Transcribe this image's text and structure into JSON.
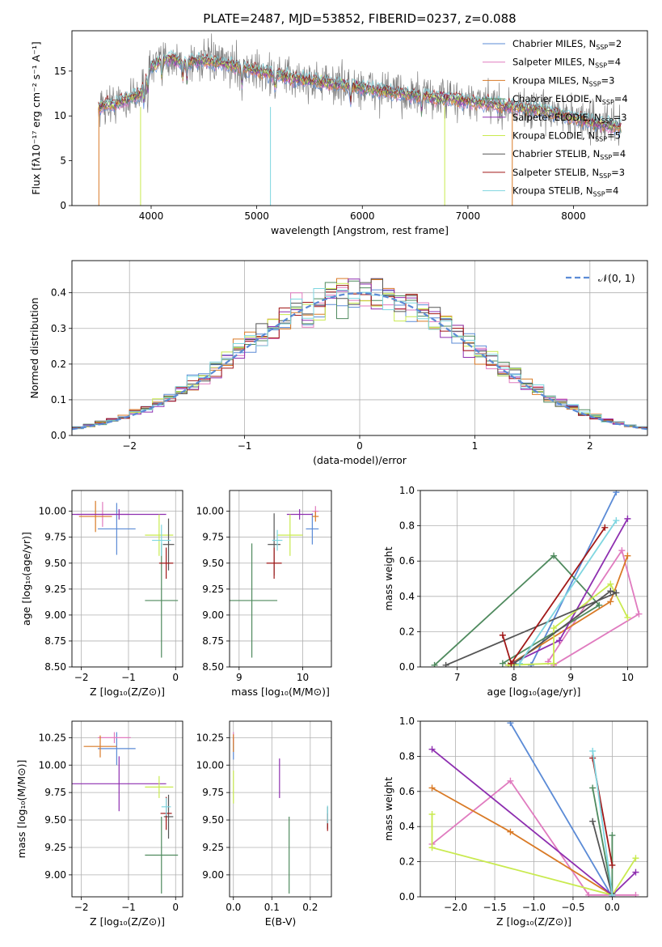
{
  "title": "PLATE=2487, MJD=53852, FIBERID=0237, z=0.088",
  "colors": {
    "chabrier_miles": "#5b8bd6",
    "salpeter_miles": "#e07bbf",
    "kroupa_miles": "#d97a26",
    "chabrier_elodie": "#4f8a5e",
    "salpeter_elodie": "#8e2fb0",
    "kroupa_elodie": "#c9ea4f",
    "chabrier_stelib": "#555555",
    "salpeter_stelib": "#a11818",
    "kroupa_stelib": "#7fd6e0"
  },
  "legend": [
    {
      "base": "Chabrier MILES, N",
      "sub": "SSP",
      "eq": "=2",
      "color_key": "chabrier_miles"
    },
    {
      "base": "Salpeter MILES, N",
      "sub": "SSP",
      "eq": "=4",
      "color_key": "salpeter_miles"
    },
    {
      "base": "Kroupa MILES, N",
      "sub": "SSP",
      "eq": "=3",
      "color_key": "kroupa_miles"
    },
    {
      "base": "Chabrier ELODIE, N",
      "sub": "SSP",
      "eq": "=4",
      "color_key": "chabrier_elodie"
    },
    {
      "base": "Salpeter ELODIE, N",
      "sub": "SSP",
      "eq": "=3",
      "color_key": "salpeter_elodie"
    },
    {
      "base": "Kroupa ELODIE, N",
      "sub": "SSP",
      "eq": "=5",
      "color_key": "kroupa_elodie"
    },
    {
      "base": "Chabrier STELIB, N",
      "sub": "SSP",
      "eq": "=4",
      "color_key": "chabrier_stelib"
    },
    {
      "base": "Salpeter STELIB, N",
      "sub": "SSP",
      "eq": "=3",
      "color_key": "salpeter_stelib"
    },
    {
      "base": "Kroupa STELIB, N",
      "sub": "SSP",
      "eq": "=4",
      "color_key": "kroupa_stelib"
    }
  ],
  "chart_data": [
    {
      "id": "spectrum",
      "type": "line",
      "xlabel": "wavelength [Angstrom, rest frame]",
      "ylabel": "Flux [fλ10⁻¹⁷ erg cm⁻² s⁻¹ A⁻¹]",
      "xlim": [
        3250,
        8700
      ],
      "ylim": [
        0,
        19.5
      ],
      "xticks": [
        4000,
        5000,
        6000,
        7000,
        8000
      ],
      "yticks": [
        0,
        5,
        10,
        15
      ],
      "grid": false,
      "legend_position": "upper-right",
      "continuum_x": [
        3500,
        3700,
        3900,
        4000,
        4150,
        4300,
        4500,
        4700,
        5000,
        5300,
        5600,
        5900,
        6200,
        6500,
        6800,
        7100,
        7400,
        7700,
        8000,
        8200,
        8450
      ],
      "continuum_y": [
        11.0,
        11.5,
        12.5,
        15.5,
        16.5,
        16.0,
        16.2,
        15.8,
        15.0,
        14.3,
        13.8,
        13.3,
        12.8,
        12.3,
        11.9,
        11.5,
        11.0,
        10.6,
        9.8,
        9.2,
        8.7
      ]
    },
    {
      "id": "residuals",
      "type": "histogram",
      "xlabel": "(data-model)/error",
      "ylabel": "Normed distribution",
      "xlim": [
        -2.5,
        2.5
      ],
      "ylim": [
        0,
        0.49
      ],
      "xticks": [
        -2,
        -1,
        0,
        1,
        2
      ],
      "yticks": [
        0.0,
        0.1,
        0.2,
        0.3,
        0.4
      ],
      "grid": true,
      "legend_position": "upper-right",
      "reference_label": "𝒩(0, 1)",
      "reference_color": "#5b8bd6",
      "bin_width": 0.1
    },
    {
      "id": "age_vs_z",
      "type": "errorbar",
      "xlabel": "Z [log₁₀(Z/Z⊙)]",
      "ylabel": "age  [log₁₀(age/yr)]",
      "xlim": [
        -2.2,
        0.15
      ],
      "ylim": [
        8.5,
        10.2
      ],
      "xticks": [
        -2,
        -1,
        0
      ],
      "yticks": [
        8.5,
        8.75,
        9.0,
        9.25,
        9.5,
        9.75,
        10.0
      ],
      "points": [
        {
          "color_key": "chabrier_miles",
          "x": -1.25,
          "xerr": 0.4,
          "y": 9.83,
          "yerr": 0.25
        },
        {
          "color_key": "salpeter_miles",
          "x": -1.55,
          "xerr": 0.55,
          "y": 9.97,
          "yerr": 0.12
        },
        {
          "color_key": "kroupa_miles",
          "x": -1.7,
          "xerr": 0.35,
          "y": 9.95,
          "yerr": 0.15
        },
        {
          "color_key": "chabrier_elodie",
          "x": -0.3,
          "xerr": 0.35,
          "y": 9.14,
          "yerr": 0.55
        },
        {
          "color_key": "salpeter_elodie",
          "x": -1.2,
          "xerr": 1.0,
          "y": 9.97,
          "yerr": 0.05
        },
        {
          "color_key": "kroupa_elodie",
          "x": -0.35,
          "xerr": 0.3,
          "y": 9.77,
          "yerr": 0.2
        },
        {
          "color_key": "chabrier_stelib",
          "x": -0.15,
          "xerr": 0.12,
          "y": 9.68,
          "yerr": 0.25
        },
        {
          "color_key": "salpeter_stelib",
          "x": -0.2,
          "xerr": 0.15,
          "y": 9.5,
          "yerr": 0.15
        },
        {
          "color_key": "kroupa_stelib",
          "x": -0.3,
          "xerr": 0.2,
          "y": 9.72,
          "yerr": 0.15
        }
      ]
    },
    {
      "id": "age_vs_mass",
      "type": "errorbar",
      "xlabel": "mass [log₁₀(M/M⊙)]",
      "ylabel": "",
      "xlim": [
        8.85,
        10.45
      ],
      "ylim": [
        8.5,
        10.2
      ],
      "xticks": [
        9,
        10
      ],
      "yticks": [
        8.5,
        8.75,
        9.0,
        9.25,
        9.5,
        9.75,
        10.0
      ],
      "points": [
        {
          "color_key": "chabrier_miles",
          "x": 10.15,
          "xerr": 0.1,
          "y": 9.83,
          "yerr": 0.15
        },
        {
          "color_key": "salpeter_miles",
          "x": 10.2,
          "xerr": 0.05,
          "y": 10.0,
          "yerr": 0.05
        },
        {
          "color_key": "kroupa_miles",
          "x": 10.2,
          "xerr": 0.05,
          "y": 9.95,
          "yerr": 0.05
        },
        {
          "color_key": "chabrier_elodie",
          "x": 9.2,
          "xerr": 0.4,
          "y": 9.14,
          "yerr": 0.55
        },
        {
          "color_key": "salpeter_elodie",
          "x": 9.95,
          "xerr": 0.2,
          "y": 9.97,
          "yerr": 0.05
        },
        {
          "color_key": "kroupa_elodie",
          "x": 9.8,
          "xerr": 0.2,
          "y": 9.77,
          "yerr": 0.2
        },
        {
          "color_key": "chabrier_stelib",
          "x": 9.55,
          "xerr": 0.1,
          "y": 9.68,
          "yerr": 0.3
        },
        {
          "color_key": "salpeter_stelib",
          "x": 9.55,
          "xerr": 0.12,
          "y": 9.5,
          "yerr": 0.15
        },
        {
          "color_key": "kroupa_stelib",
          "x": 9.6,
          "xerr": 0.08,
          "y": 9.72,
          "yerr": 0.1
        }
      ]
    },
    {
      "id": "weight_vs_age",
      "type": "line",
      "xlabel": "age  [log₁₀(age/yr)]",
      "ylabel": "mass weight",
      "xlim": [
        6.35,
        10.35
      ],
      "ylim": [
        0,
        1.0
      ],
      "xticks": [
        7,
        8,
        9,
        10
      ],
      "yticks": [
        0.0,
        0.2,
        0.4,
        0.6,
        0.8,
        1.0
      ],
      "grid": true,
      "series": [
        {
          "color_key": "chabrier_miles",
          "x": [
            8.3,
            9.8
          ],
          "y": [
            0.01,
            0.99
          ]
        },
        {
          "color_key": "salpeter_miles",
          "x": [
            8.6,
            9.9,
            10.2,
            8.7
          ],
          "y": [
            0.03,
            0.66,
            0.3,
            0.01
          ]
        },
        {
          "color_key": "kroupa_miles",
          "x": [
            10.0,
            9.7,
            7.9
          ],
          "y": [
            0.63,
            0.37,
            0.01
          ]
        },
        {
          "color_key": "chabrier_elodie",
          "x": [
            6.6,
            8.7,
            9.5,
            7.8
          ],
          "y": [
            0.01,
            0.63,
            0.35,
            0.02
          ]
        },
        {
          "color_key": "salpeter_elodie",
          "x": [
            10.0,
            8.8,
            7.9
          ],
          "y": [
            0.84,
            0.15,
            0.01
          ]
        },
        {
          "color_key": "kroupa_elodie",
          "x": [
            10.0,
            9.7,
            8.7,
            8.7,
            7.9
          ],
          "y": [
            0.28,
            0.47,
            0.22,
            0.02,
            0.01
          ]
        },
        {
          "color_key": "chabrier_stelib",
          "x": [
            6.8,
            9.8,
            9.7,
            8.0
          ],
          "y": [
            0.01,
            0.42,
            0.43,
            0.02
          ]
        },
        {
          "color_key": "salpeter_stelib",
          "x": [
            7.8,
            7.95,
            9.6
          ],
          "y": [
            0.18,
            0.02,
            0.79
          ]
        },
        {
          "color_key": "kroupa_stelib",
          "x": [
            9.8,
            8.1
          ],
          "y": [
            0.83,
            0.02
          ]
        }
      ]
    },
    {
      "id": "mass_vs_z",
      "type": "errorbar",
      "xlabel": "Z [log₁₀(Z/Z⊙)]",
      "ylabel": "mass [log₁₀(M/M⊙)]",
      "xlim": [
        -2.2,
        0.15
      ],
      "ylim": [
        8.8,
        10.4
      ],
      "xticks": [
        -2,
        -1,
        0
      ],
      "yticks": [
        9.0,
        9.25,
        9.5,
        9.75,
        10.0,
        10.25
      ],
      "points": [
        {
          "color_key": "chabrier_miles",
          "x": -1.25,
          "xerr": 0.4,
          "y": 10.15,
          "yerr": 0.15
        },
        {
          "color_key": "salpeter_miles",
          "x": -1.3,
          "xerr": 0.35,
          "y": 10.25,
          "yerr": 0.05
        },
        {
          "color_key": "kroupa_miles",
          "x": -1.6,
          "xerr": 0.35,
          "y": 10.17,
          "yerr": 0.1
        },
        {
          "color_key": "chabrier_elodie",
          "x": -0.3,
          "xerr": 0.35,
          "y": 9.18,
          "yerr": 0.35
        },
        {
          "color_key": "salpeter_elodie",
          "x": -1.2,
          "xerr": 1.0,
          "y": 9.83,
          "yerr": 0.25
        },
        {
          "color_key": "kroupa_elodie",
          "x": -0.35,
          "xerr": 0.3,
          "y": 9.8,
          "yerr": 0.1
        },
        {
          "color_key": "chabrier_stelib",
          "x": -0.15,
          "xerr": 0.1,
          "y": 9.53,
          "yerr": 0.2
        },
        {
          "color_key": "salpeter_stelib",
          "x": -0.2,
          "xerr": 0.12,
          "y": 9.56,
          "yerr": 0.15
        },
        {
          "color_key": "kroupa_stelib",
          "x": -0.2,
          "xerr": 0.1,
          "y": 9.62,
          "yerr": 0.08
        }
      ]
    },
    {
      "id": "mass_vs_ebv",
      "type": "errorbar",
      "xlabel": "E(B-V)",
      "ylabel": "",
      "xlim": [
        -0.01,
        0.255
      ],
      "ylim": [
        8.8,
        10.4
      ],
      "xticks": [
        0.0,
        0.1,
        0.2
      ],
      "yticks": [
        9.0,
        9.25,
        9.5,
        9.75,
        10.0,
        10.25
      ],
      "points": [
        {
          "color_key": "chabrier_miles",
          "x": 0.0,
          "xerr": 0.0,
          "y": 10.15,
          "yerr": 0.1
        },
        {
          "color_key": "salpeter_miles",
          "x": 0.0,
          "xerr": 0.0,
          "y": 10.25,
          "yerr": 0.05
        },
        {
          "color_key": "kroupa_miles",
          "x": 0.0,
          "xerr": 0.0,
          "y": 10.2,
          "yerr": 0.08
        },
        {
          "color_key": "chabrier_elodie",
          "x": 0.145,
          "xerr": 0.0,
          "y": 9.18,
          "yerr": 0.35
        },
        {
          "color_key": "salpeter_elodie",
          "x": 0.12,
          "xerr": 0.0,
          "y": 9.88,
          "yerr": 0.18
        },
        {
          "color_key": "kroupa_elodie",
          "x": 0.0,
          "xerr": 0.0,
          "y": 9.8,
          "yerr": 0.15
        },
        {
          "color_key": "chabrier_stelib",
          "x": 0.245,
          "xerr": 0.0,
          "y": 9.52,
          "yerr": 0.1
        },
        {
          "color_key": "salpeter_stelib",
          "x": 0.245,
          "xerr": 0.0,
          "y": 9.48,
          "yerr": 0.08
        },
        {
          "color_key": "kroupa_stelib",
          "x": 0.245,
          "xerr": 0.0,
          "y": 9.55,
          "yerr": 0.08
        }
      ]
    },
    {
      "id": "weight_vs_z",
      "type": "line",
      "xlabel": "Z [log₁₀(Z/Z⊙)]",
      "ylabel": "mass weight",
      "xlim": [
        -2.45,
        0.45
      ],
      "ylim": [
        0,
        1.0
      ],
      "xticks": [
        -2.0,
        -1.5,
        -1.0,
        -0.5,
        0.0
      ],
      "yticks": [
        0.0,
        0.2,
        0.4,
        0.6,
        0.8,
        1.0
      ],
      "grid": true,
      "series": [
        {
          "color_key": "chabrier_miles",
          "x": [
            -1.3,
            0.0
          ],
          "y": [
            0.99,
            0.0
          ]
        },
        {
          "color_key": "salpeter_miles",
          "x": [
            -2.3,
            -1.3,
            -0.3,
            0.0,
            0.3
          ],
          "y": [
            0.3,
            0.66,
            0.01,
            0.01,
            0.01
          ]
        },
        {
          "color_key": "kroupa_miles",
          "x": [
            -2.3,
            -1.3,
            0.0
          ],
          "y": [
            0.62,
            0.37,
            0.01
          ]
        },
        {
          "color_key": "chabrier_elodie",
          "x": [
            -0.25,
            0.0,
            0.0
          ],
          "y": [
            0.62,
            0.01,
            0.35
          ]
        },
        {
          "color_key": "salpeter_elodie",
          "x": [
            -2.3,
            0.0,
            0.3
          ],
          "y": [
            0.84,
            0.01,
            0.14
          ]
        },
        {
          "color_key": "kroupa_elodie",
          "x": [
            -2.3,
            -2.3,
            0.0,
            0.3
          ],
          "y": [
            0.47,
            0.28,
            0.01,
            0.22
          ]
        },
        {
          "color_key": "chabrier_stelib",
          "x": [
            -0.25,
            0.0,
            0.0
          ],
          "y": [
            0.43,
            0.01,
            0.02
          ]
        },
        {
          "color_key": "salpeter_stelib",
          "x": [
            -0.25,
            0.0
          ],
          "y": [
            0.79,
            0.18
          ]
        },
        {
          "color_key": "kroupa_stelib",
          "x": [
            -0.25,
            0.0
          ],
          "y": [
            0.83,
            0.01
          ]
        }
      ]
    }
  ]
}
